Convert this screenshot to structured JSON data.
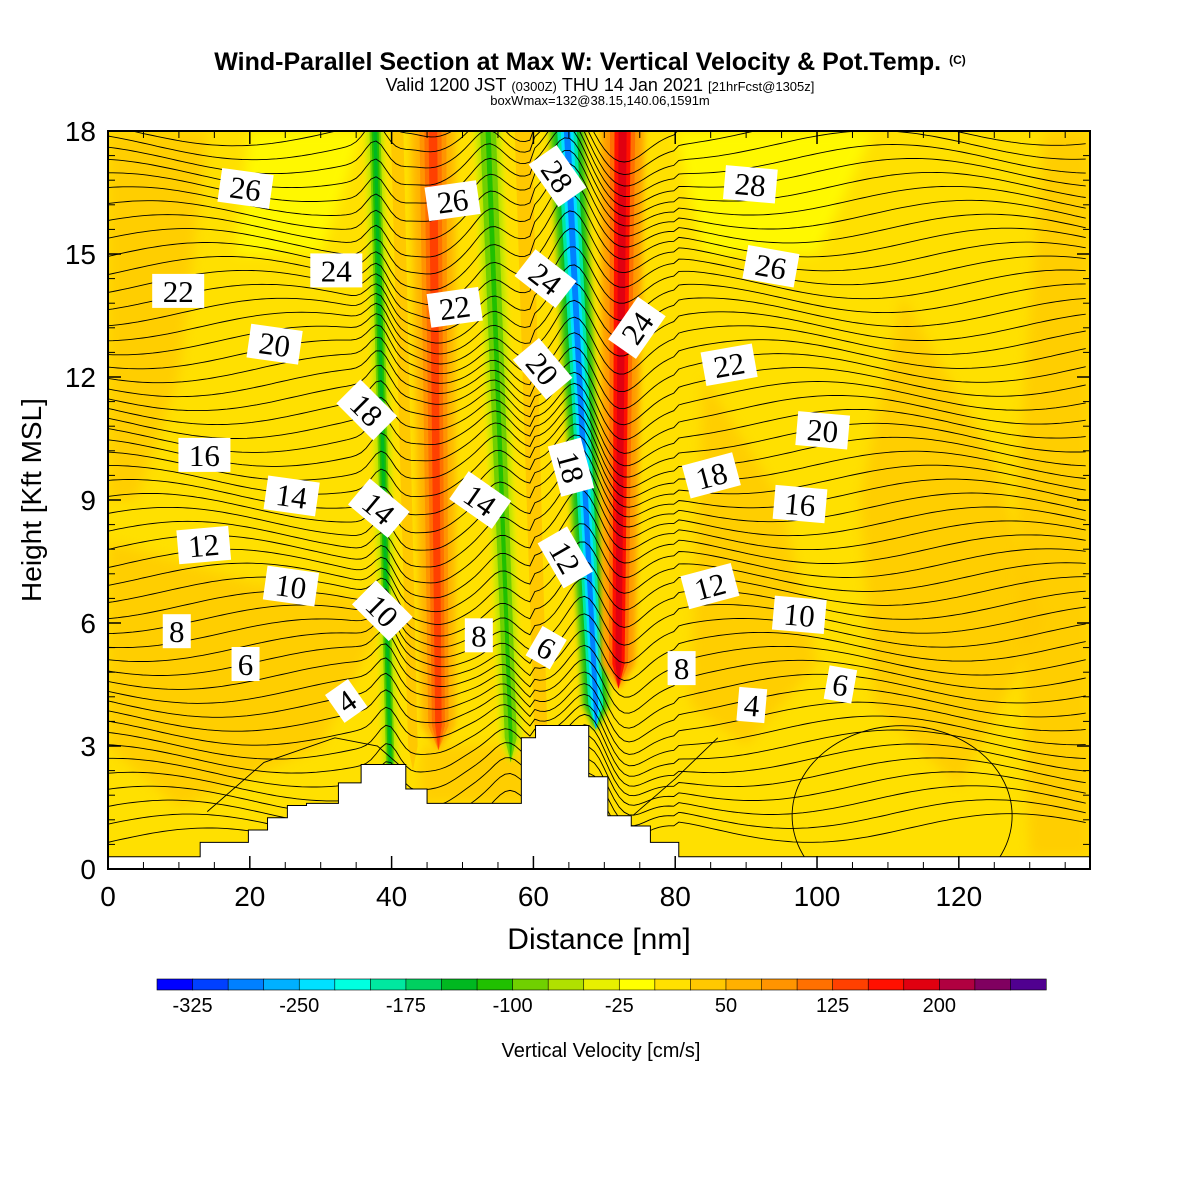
{
  "header": {
    "title": "Wind-Parallel Section at Max W: Vertical Velocity & Pot.Temp.",
    "title_mark": "(C)",
    "subtitle_a": "Valid 1200 JST",
    "subtitle_b": "(0300Z)",
    "subtitle_c": "THU 14 Jan 2021",
    "subtitle_d": "[21hrFcst@1305z]",
    "subtitle2": "boxWmax=132@38.15,140.06,1591m"
  },
  "chart_data": {
    "type": "heatmap",
    "xlabel": "Distance [nm]",
    "ylabel": "Height [Kft MSL]",
    "xlim": [
      0,
      138.5
    ],
    "ylim": [
      0,
      18
    ],
    "x_ticks": [
      "0",
      "20",
      "40",
      "60",
      "80",
      "100",
      "120"
    ],
    "y_ticks": [
      "0",
      "3",
      "6",
      "9",
      "12",
      "15",
      "18"
    ],
    "x_tick_values": [
      0,
      20,
      40,
      60,
      80,
      100,
      120
    ],
    "y_tick_values": [
      0,
      3,
      6,
      9,
      12,
      15,
      18
    ],
    "colorbar": {
      "label": "Vertical Velocity [cm/s]",
      "tick_labels": [
        "-325",
        "-250",
        "-175",
        "-100",
        "-25",
        "50",
        "125",
        "200"
      ],
      "colors": [
        "#0000ff",
        "#0040ff",
        "#0080ff",
        "#00b0ff",
        "#00e0ff",
        "#00ffe0",
        "#00e8a0",
        "#00d060",
        "#00b820",
        "#20c000",
        "#70d000",
        "#b0e000",
        "#e8f000",
        "#ffff00",
        "#ffe000",
        "#ffc800",
        "#ffb000",
        "#ff9400",
        "#ff7000",
        "#ff4000",
        "#ff1000",
        "#e00010",
        "#b00040",
        "#800060",
        "#500090"
      ]
    },
    "terrain_kft": [
      [
        0,
        0.3
      ],
      [
        6.5,
        0.3
      ],
      [
        13,
        0.65
      ],
      [
        19.8,
        0.95
      ],
      [
        22.5,
        1.25
      ],
      [
        25.3,
        1.55
      ],
      [
        28,
        1.6
      ],
      [
        32.5,
        2.1
      ],
      [
        35.7,
        2.55
      ],
      [
        42,
        1.95
      ],
      [
        45,
        1.6
      ],
      [
        58,
        1.6
      ],
      [
        58.3,
        3.2
      ],
      [
        60.3,
        3.5
      ],
      [
        66,
        3.5
      ],
      [
        67.8,
        2.25
      ],
      [
        70.5,
        1.3
      ],
      [
        73.8,
        1.05
      ],
      [
        76.5,
        0.65
      ],
      [
        80.5,
        0.3
      ],
      [
        84,
        0.3
      ],
      [
        138.5,
        0.3
      ]
    ],
    "velocity_bands": [
      {
        "x_top": 37.6,
        "x_bottom": 39.8,
        "width_nm": 1.4,
        "y_bottom": 2.6,
        "value": -140
      },
      {
        "x_top": 40.7,
        "x_bottom": 43.0,
        "width_nm": 1.6,
        "y_bottom": 3.0,
        "value": 40
      },
      {
        "x_top": 45.8,
        "x_bottom": 46.6,
        "width_nm": 3.4,
        "y_bottom": 3.5,
        "value": 140
      },
      {
        "x_top": 53.5,
        "x_bottom": 56.8,
        "width_nm": 2.0,
        "y_bottom": 3.2,
        "value": -120
      },
      {
        "x_top": 58.5,
        "x_bottom": 61.0,
        "width_nm": 2.2,
        "y_bottom": 3.5,
        "value": 40
      },
      {
        "x_top": 64.6,
        "x_bottom": 68.8,
        "width_nm": 2.5,
        "y_bottom": 4.0,
        "value": -300
      },
      {
        "x_top": 72.6,
        "x_bottom": 72.0,
        "width_nm": 3.2,
        "y_bottom": 5.0,
        "value": 190
      }
    ],
    "isentrope_labels": [
      {
        "text": "26",
        "x": 19.4,
        "y": 16.6,
        "rot": 8
      },
      {
        "text": "24",
        "x": 32.2,
        "y": 14.6,
        "rot": 0
      },
      {
        "text": "22",
        "x": 9.9,
        "y": 14.1,
        "rot": 0
      },
      {
        "text": "20",
        "x": 23.5,
        "y": 12.8,
        "rot": 8
      },
      {
        "text": "18",
        "x": 36.5,
        "y": 11.2,
        "rot": 45
      },
      {
        "text": "16",
        "x": 13.6,
        "y": 10.1,
        "rot": 0
      },
      {
        "text": "14",
        "x": 25.9,
        "y": 9.1,
        "rot": 8
      },
      {
        "text": "14",
        "x": 38.2,
        "y": 8.8,
        "rot": 40
      },
      {
        "text": "12",
        "x": 13.5,
        "y": 7.9,
        "rot": -5
      },
      {
        "text": "10",
        "x": 25.8,
        "y": 6.9,
        "rot": 8
      },
      {
        "text": "10",
        "x": 38.7,
        "y": 6.3,
        "rot": 45
      },
      {
        "text": "8",
        "x": 9.7,
        "y": 5.8,
        "rot": 0
      },
      {
        "text": "6",
        "x": 19.4,
        "y": 5.0,
        "rot": 0
      },
      {
        "text": "4",
        "x": 33.6,
        "y": 4.1,
        "rot": -35
      },
      {
        "text": "26",
        "x": 48.6,
        "y": 16.3,
        "rot": -8
      },
      {
        "text": "22",
        "x": 48.9,
        "y": 13.7,
        "rot": -8
      },
      {
        "text": "14",
        "x": 52.5,
        "y": 9.0,
        "rot": 35
      },
      {
        "text": "8",
        "x": 52.3,
        "y": 5.7,
        "rot": 0
      },
      {
        "text": "28",
        "x": 63.4,
        "y": 16.9,
        "rot": 55
      },
      {
        "text": "24",
        "x": 61.7,
        "y": 14.4,
        "rot": 38
      },
      {
        "text": "20",
        "x": 61.3,
        "y": 12.2,
        "rot": 50
      },
      {
        "text": "18",
        "x": 65.3,
        "y": 9.8,
        "rot": 75
      },
      {
        "text": "12",
        "x": 64.5,
        "y": 7.6,
        "rot": 60
      },
      {
        "text": "6",
        "x": 61.8,
        "y": 5.4,
        "rot": 30
      },
      {
        "text": "24",
        "x": 74.6,
        "y": 13.2,
        "rot": -55
      },
      {
        "text": "28",
        "x": 90.6,
        "y": 16.7,
        "rot": 5
      },
      {
        "text": "26",
        "x": 93.5,
        "y": 14.7,
        "rot": 10
      },
      {
        "text": "22",
        "x": 87.6,
        "y": 12.3,
        "rot": -10
      },
      {
        "text": "20",
        "x": 100.8,
        "y": 10.7,
        "rot": 5
      },
      {
        "text": "18",
        "x": 85.1,
        "y": 9.6,
        "rot": -15
      },
      {
        "text": "16",
        "x": 97.6,
        "y": 8.9,
        "rot": 5
      },
      {
        "text": "12",
        "x": 84.9,
        "y": 6.9,
        "rot": -15
      },
      {
        "text": "10",
        "x": 97.5,
        "y": 6.2,
        "rot": 5
      },
      {
        "text": "8",
        "x": 80.9,
        "y": 4.9,
        "rot": 0
      },
      {
        "text": "6",
        "x": 103.3,
        "y": 4.5,
        "rot": 10
      },
      {
        "text": "4",
        "x": 90.8,
        "y": 4.0,
        "rot": 5
      }
    ]
  }
}
